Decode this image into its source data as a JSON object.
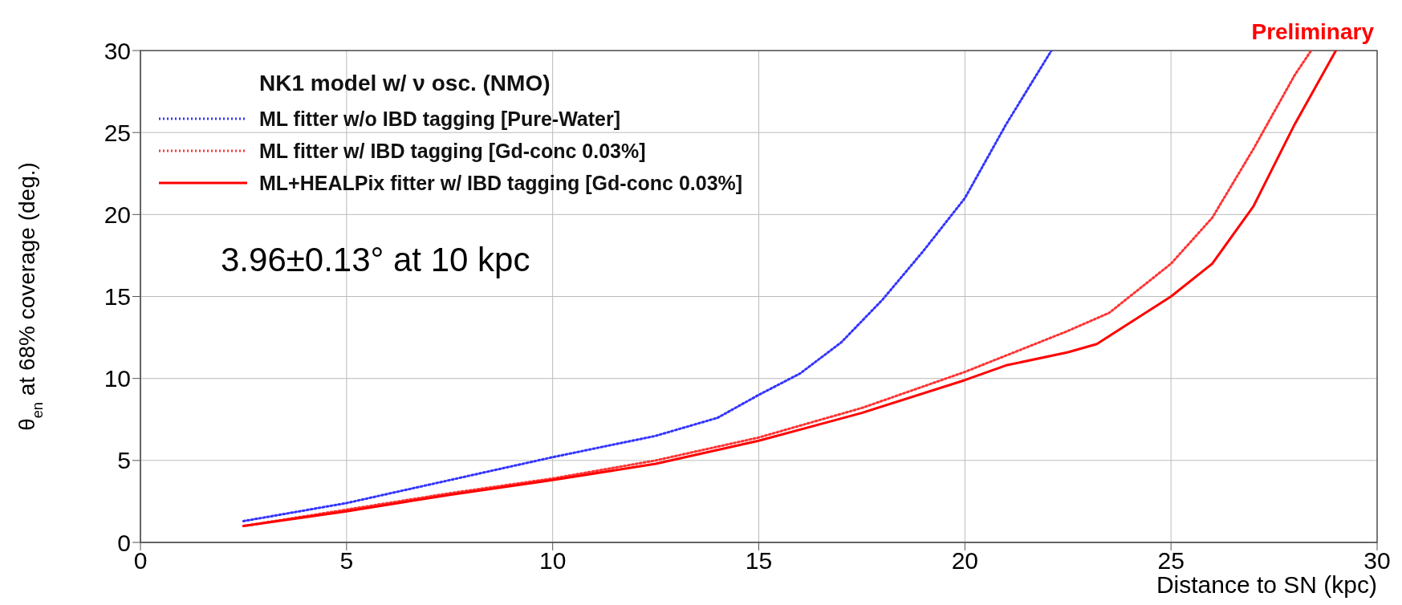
{
  "chart_data": {
    "type": "line",
    "xlabel": "Distance to SN (kpc)",
    "ylabel": "θ$_{en}$ at 68% coverage (deg.)",
    "legend_title": "NK1 model w/ ν osc. (NMO)",
    "annotations": [
      "3.96±0.13° at 10 kpc",
      "Preliminary"
    ],
    "series": [
      {
        "name": "ML fitter w/o IBD tagging [Pure-Water]",
        "color": "#3333ff",
        "line_style": "dotted",
        "x": [
          2.5,
          5,
          7.5,
          10,
          12.5,
          14,
          15,
          16,
          17,
          18,
          19,
          20,
          21,
          22.1
        ],
        "values": [
          1.3,
          2.4,
          3.8,
          5.2,
          6.5,
          7.6,
          9.0,
          10.3,
          12.2,
          14.8,
          17.8,
          21,
          25.5,
          30
        ]
      },
      {
        "name": "ML fitter w/ IBD tagging [Gd-conc 0.03%]",
        "color": "#ff3333",
        "line_style": "dotted",
        "x": [
          2.5,
          5,
          7.5,
          10,
          12.5,
          15,
          17.5,
          20,
          22.5,
          23.5,
          25,
          26,
          27,
          28,
          28.4
        ],
        "values": [
          1.0,
          2.0,
          3.0,
          3.9,
          5.0,
          6.4,
          8.2,
          10.4,
          12.9,
          14.0,
          17.0,
          19.8,
          24,
          28.5,
          30
        ]
      },
      {
        "name": "ML+HEALPix fitter w/ IBD tagging [Gd-conc 0.03%]",
        "color": "#ff0000",
        "line_style": "solid",
        "x": [
          2.5,
          5,
          7.5,
          10,
          12.5,
          15,
          17.5,
          20,
          21,
          22.5,
          23.2,
          25,
          26,
          27,
          28,
          29
        ],
        "values": [
          1.0,
          1.9,
          2.9,
          3.8,
          4.8,
          6.2,
          7.9,
          9.9,
          10.8,
          11.6,
          12.1,
          15.0,
          17.0,
          20.5,
          25.5,
          30
        ]
      }
    ],
    "xlim": [
      0,
      30
    ],
    "xticks": [
      0,
      5,
      10,
      15,
      20,
      25,
      30
    ],
    "ylim": [
      0,
      30
    ],
    "yticks": [
      0,
      5,
      10,
      15,
      20,
      25,
      30
    ],
    "grid": true,
    "legend": "top left",
    "marker": "none"
  }
}
